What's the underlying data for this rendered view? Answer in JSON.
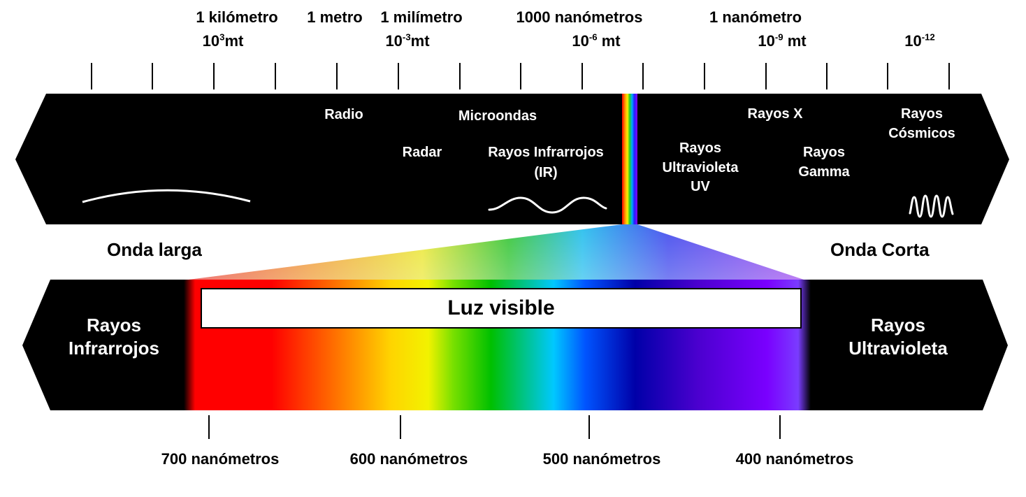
{
  "top_scale": [
    {
      "name": "1 kilómetro",
      "exp_base": "10",
      "exp_sup": "3",
      "exp_unit": "mt"
    },
    {
      "name": "1 metro",
      "exp_base": "",
      "exp_sup": "",
      "exp_unit": ""
    },
    {
      "name": "1 milímetro",
      "exp_base": "10",
      "exp_sup": "-3",
      "exp_unit": "mt"
    },
    {
      "name": "1000 nanómetros",
      "exp_base": "10",
      "exp_sup": "-6",
      "exp_unit": " mt"
    },
    {
      "name": "1 nanómetro",
      "exp_base": "10",
      "exp_sup": "-9",
      "exp_unit": " mt"
    },
    {
      "name": "",
      "exp_base": "10",
      "exp_sup": "-12",
      "exp_unit": ""
    }
  ],
  "spectrum_bands": {
    "radio": "Radio",
    "microwaves": "Microondas",
    "radar": "Radar",
    "infrared_line1": "Rayos Infrarrojos",
    "infrared_line2": "(IR)",
    "uv_line1": "Rayos",
    "uv_line2": "Ultravioleta",
    "uv_line3": "UV",
    "xray": "Rayos X",
    "gamma_line1": "Rayos",
    "gamma_line2": "Gamma",
    "cosmic_line1": "Rayos",
    "cosmic_line2": "Cósmicos"
  },
  "wave_labels": {
    "long": "Onda larga",
    "short": "Onda Corta"
  },
  "visible_band": {
    "title": "Luz visible",
    "left_line1": "Rayos",
    "left_line2": "Infrarrojos",
    "right_line1": "Rayos",
    "right_line2": "Ultravioleta",
    "wavelengths": [
      "700 nanómetros",
      "600 nanómetros",
      "500 nanómetros",
      "400 nanómetros"
    ]
  },
  "colors": {
    "band_background": "#000000",
    "label_on_dark": "#ffffff",
    "label_on_light": "#000000"
  }
}
